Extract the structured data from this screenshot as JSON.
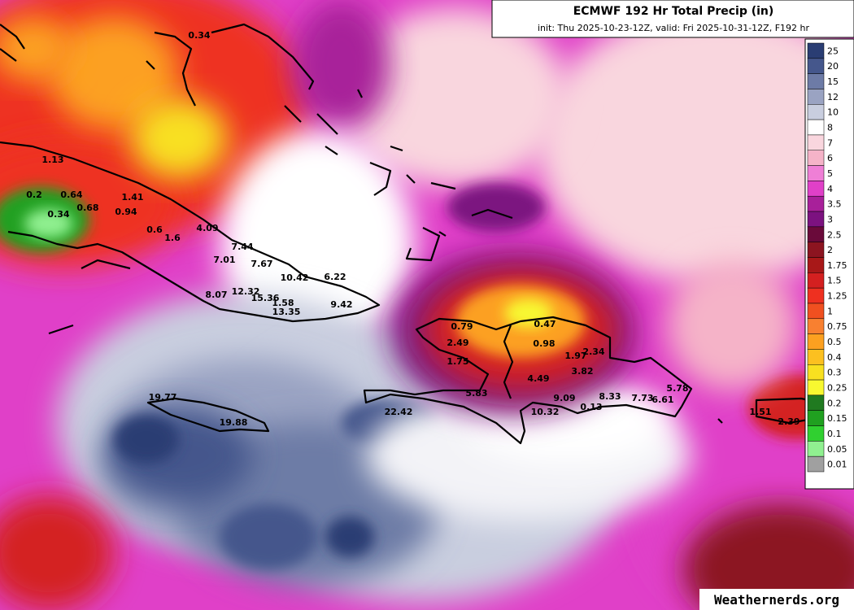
{
  "header": {
    "title": "ECMWF 192 Hr Total Precip (in)",
    "subtitle": "init: Thu 2025-10-23-12Z, valid: Fri 2025-10-31-12Z, F192 hr"
  },
  "legend": {
    "levels": [
      25,
      20,
      15,
      12,
      10,
      8,
      7,
      6,
      5,
      4,
      3.5,
      3,
      2.5,
      2,
      1.75,
      1.5,
      1.25,
      1,
      0.75,
      0.5,
      0.4,
      0.3,
      0.25,
      0.2,
      0.15,
      0.1,
      0.05,
      0.01
    ],
    "colors": [
      "#2a3d73",
      "#45578c",
      "#6d7ba6",
      "#9aa3c2",
      "#c9cedf",
      "#ffffff",
      "#f9d6de",
      "#f5b3c8",
      "#ef7fd6",
      "#e040c8",
      "#a8209a",
      "#7c1280",
      "#6a0a3a",
      "#8c1420",
      "#a81818",
      "#d42020",
      "#ee3020",
      "#f05020",
      "#f88030",
      "#fca020",
      "#fcc020",
      "#f8e020",
      "#f8f830",
      "#207a20",
      "#20a020",
      "#30d030",
      "#90f090",
      "#a0a0a0"
    ]
  },
  "point_labels": [
    "0.34",
    "1.13",
    "0.2",
    "0.64",
    "1.41",
    "0.68",
    "0.94",
    "0.34",
    "0.6",
    "1.6",
    "4.09",
    "7.44",
    "7.01",
    "7.67",
    "10.42",
    "6.22",
    "8.07",
    "12.32",
    "15.36",
    "1.58",
    "13.35",
    "9.42",
    "0.79",
    "0.47",
    "2.49",
    "0.98",
    "1.97",
    "2.34",
    "1.75",
    "3.82",
    "4.49",
    "5.83",
    "5.78",
    "9.09",
    "8.33",
    "7.73",
    "6.61",
    "10.32",
    "0.13",
    "19.77",
    "19.88",
    "22.42",
    "1.51",
    "2.39"
  ],
  "watermark": "Weathernerds.org"
}
